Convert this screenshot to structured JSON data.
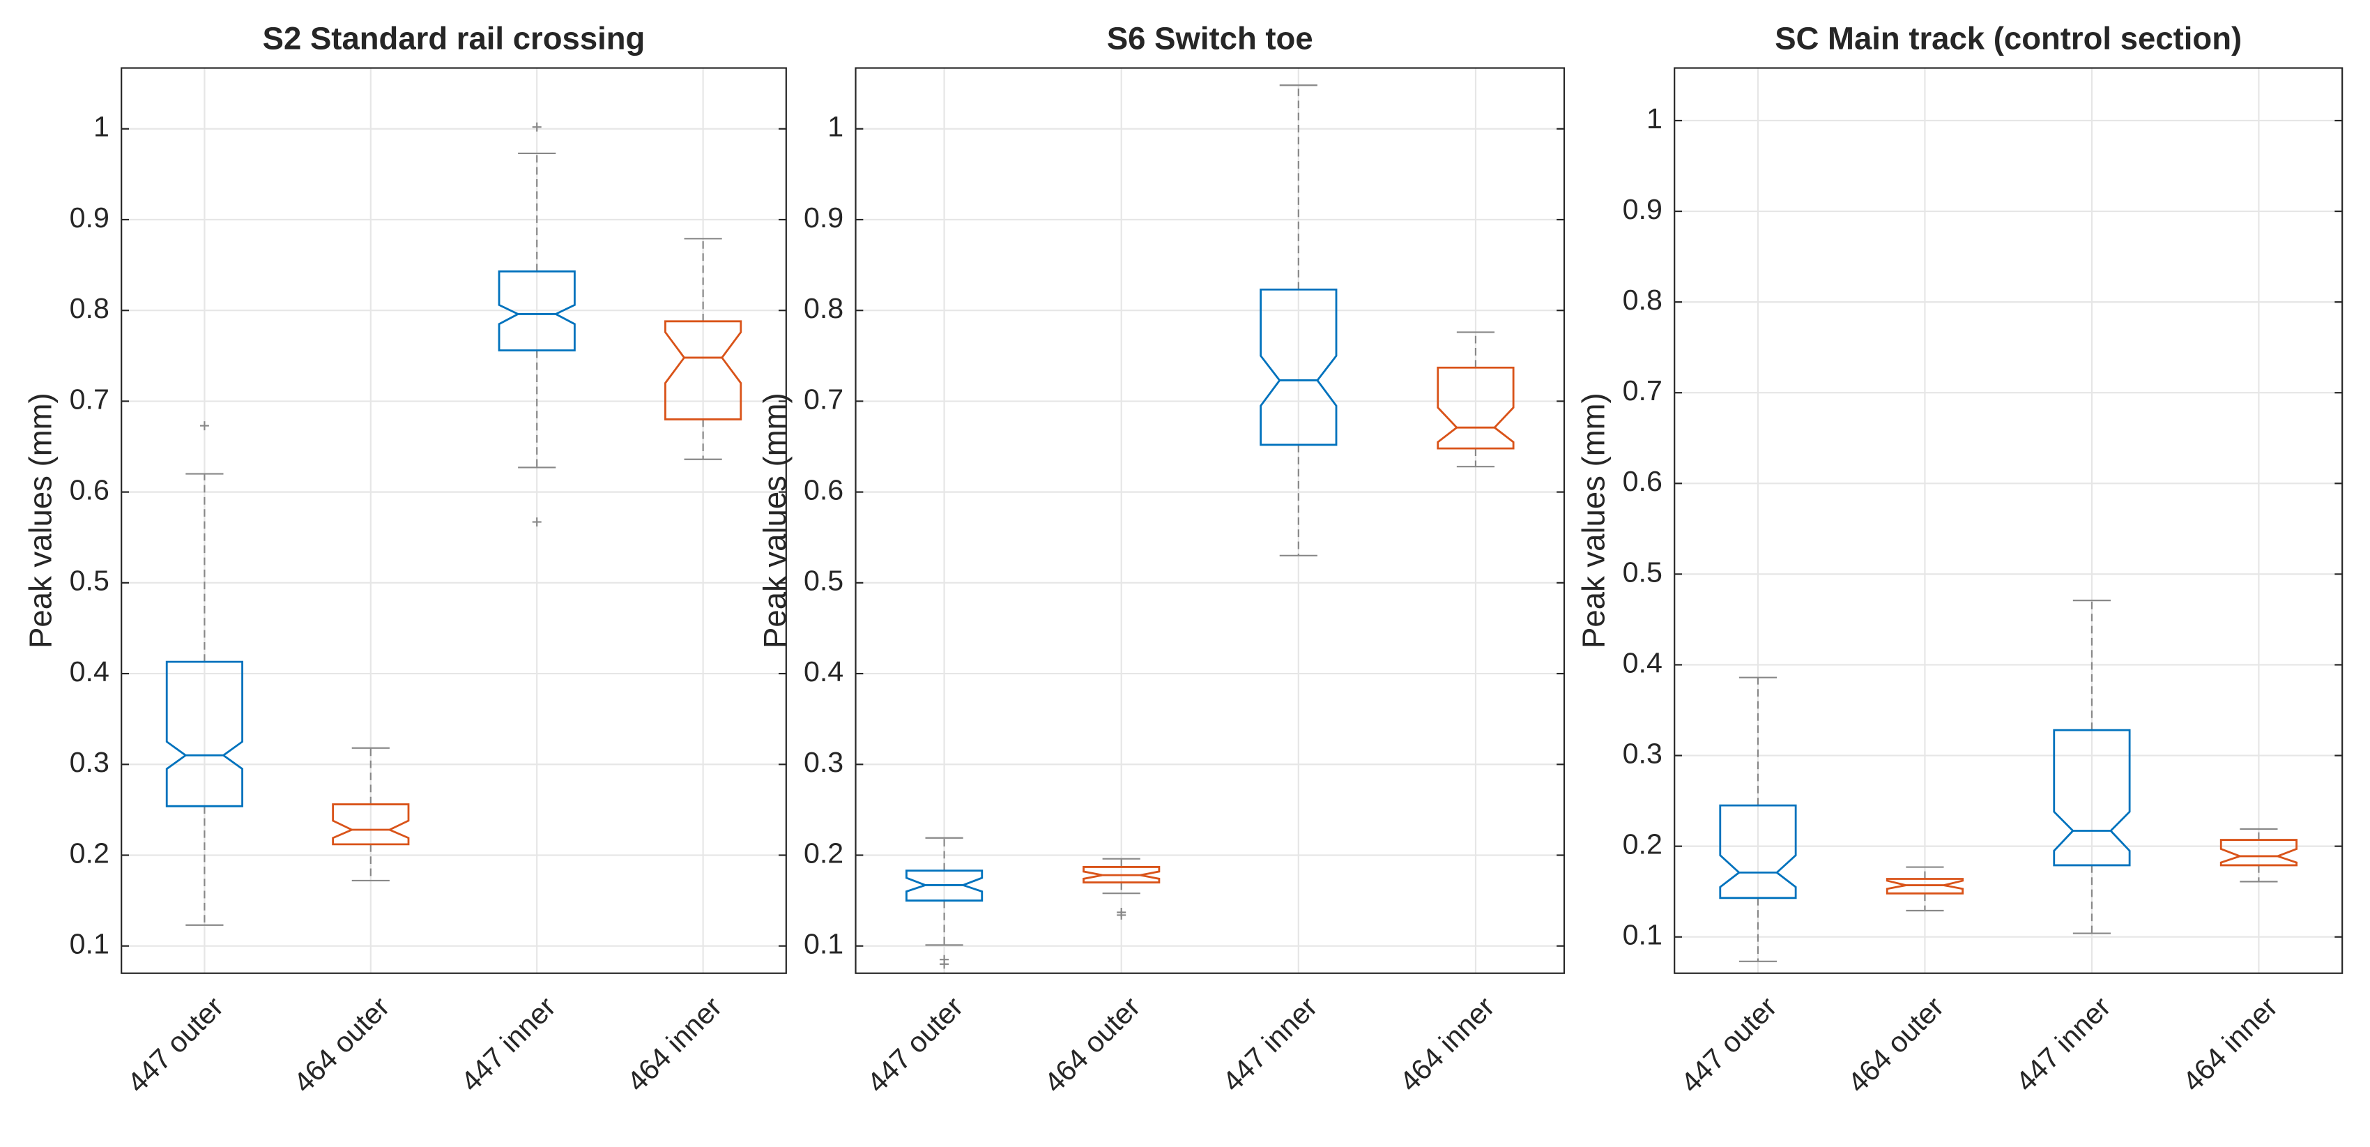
{
  "chart_data": [
    {
      "type": "box",
      "title": "S2 Standard rail crossing",
      "ylabel": "Peak values (mm)",
      "categories": [
        "447 outer",
        "464 outer",
        "447 inner",
        "464 inner"
      ],
      "colors": [
        "#0072BD",
        "#D95319",
        "#0072BD",
        "#D95319"
      ],
      "ylim": [
        0.07,
        1.067
      ],
      "yticks": [
        0.1,
        0.2,
        0.3,
        0.4,
        0.5,
        0.6,
        0.7,
        0.8,
        0.9,
        1
      ],
      "grid": true,
      "boxes": [
        {
          "whislo": 0.123,
          "q1": 0.254,
          "notch_lo": 0.295,
          "med": 0.31,
          "notch_hi": 0.325,
          "q3": 0.413,
          "whishi": 0.62,
          "fliers": [
            0.673
          ]
        },
        {
          "whislo": 0.172,
          "q1": 0.212,
          "notch_lo": 0.219,
          "med": 0.228,
          "notch_hi": 0.238,
          "q3": 0.256,
          "whishi": 0.318,
          "fliers": []
        },
        {
          "whislo": 0.627,
          "q1": 0.756,
          "notch_lo": 0.785,
          "med": 0.796,
          "notch_hi": 0.806,
          "q3": 0.843,
          "whishi": 0.973,
          "fliers": [
            1.002,
            0.567
          ]
        },
        {
          "whislo": 0.636,
          "q1": 0.68,
          "notch_lo": 0.72,
          "med": 0.748,
          "notch_hi": 0.776,
          "q3": 0.788,
          "whishi": 0.879,
          "fliers": []
        }
      ]
    },
    {
      "type": "box",
      "title": "S6 Switch toe",
      "ylabel": "Peak values (mm)",
      "categories": [
        "447 outer",
        "464 outer",
        "447 inner",
        "464 inner"
      ],
      "colors": [
        "#0072BD",
        "#D95319",
        "#0072BD",
        "#D95319"
      ],
      "ylim": [
        0.07,
        1.067
      ],
      "yticks": [
        0.1,
        0.2,
        0.3,
        0.4,
        0.5,
        0.6,
        0.7,
        0.8,
        0.9,
        1
      ],
      "grid": true,
      "boxes": [
        {
          "whislo": 0.101,
          "q1": 0.15,
          "notch_lo": 0.16,
          "med": 0.167,
          "notch_hi": 0.175,
          "q3": 0.183,
          "whishi": 0.219,
          "fliers": [
            0.085,
            0.08
          ]
        },
        {
          "whislo": 0.158,
          "q1": 0.17,
          "notch_lo": 0.174,
          "med": 0.178,
          "notch_hi": 0.182,
          "q3": 0.187,
          "whishi": 0.196,
          "fliers": [
            0.137,
            0.134
          ]
        },
        {
          "whislo": 0.53,
          "q1": 0.652,
          "notch_lo": 0.695,
          "med": 0.723,
          "notch_hi": 0.75,
          "q3": 0.823,
          "whishi": 1.048,
          "fliers": []
        },
        {
          "whislo": 0.628,
          "q1": 0.648,
          "notch_lo": 0.655,
          "med": 0.671,
          "notch_hi": 0.693,
          "q3": 0.737,
          "whishi": 0.776,
          "fliers": []
        }
      ]
    },
    {
      "type": "box",
      "title": "SC Main track (control section)",
      "ylabel": "Peak values (mm)",
      "categories": [
        "447 outer",
        "464 outer",
        "447 inner",
        "464 inner"
      ],
      "colors": [
        "#0072BD",
        "#D95319",
        "#0072BD",
        "#D95319"
      ],
      "ylim": [
        0.06,
        1.058
      ],
      "yticks": [
        0.1,
        0.2,
        0.3,
        0.4,
        0.5,
        0.6,
        0.7,
        0.8,
        0.9,
        1
      ],
      "grid": true,
      "boxes": [
        {
          "whislo": 0.073,
          "q1": 0.143,
          "notch_lo": 0.155,
          "med": 0.171,
          "notch_hi": 0.19,
          "q3": 0.245,
          "whishi": 0.386,
          "fliers": []
        },
        {
          "whislo": 0.129,
          "q1": 0.148,
          "notch_lo": 0.153,
          "med": 0.157,
          "notch_hi": 0.162,
          "q3": 0.164,
          "whishi": 0.177,
          "fliers": []
        },
        {
          "whislo": 0.104,
          "q1": 0.179,
          "notch_lo": 0.195,
          "med": 0.217,
          "notch_hi": 0.238,
          "q3": 0.328,
          "whishi": 0.471,
          "fliers": []
        },
        {
          "whislo": 0.161,
          "q1": 0.179,
          "notch_lo": 0.182,
          "med": 0.189,
          "notch_hi": 0.197,
          "q3": 0.207,
          "whishi": 0.219,
          "fliers": []
        }
      ]
    }
  ]
}
